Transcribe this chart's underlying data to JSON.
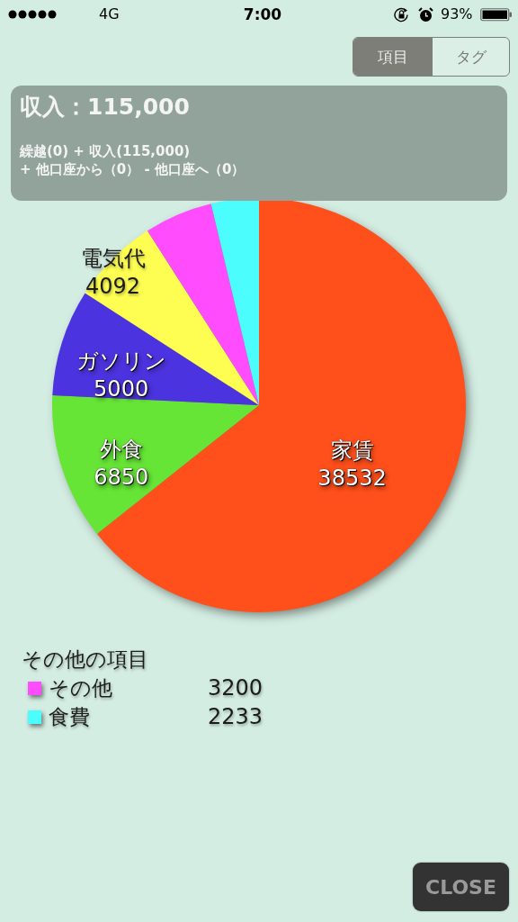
{
  "chart_data": {
    "type": "pie",
    "title": "収入：115,000",
    "subtitle": "繰越(0) + 収入(115,000)",
    "categories": [
      "家賃",
      "外食",
      "ガソリン",
      "電気代",
      "その他",
      "食費"
    ],
    "values": [
      38532,
      6850,
      5000,
      4092,
      3200,
      2233
    ],
    "colors": [
      "#ff4f1b",
      "#66e536",
      "#4c33e0",
      "#fdfd52",
      "#ff4cfc",
      "#4cfdfd"
    ],
    "data_labels": true,
    "legend": "bottom left",
    "legend_title": "その他の項目",
    "annotations": [
      "+ 他口座から（0） - 他口座へ（0）",
      "項目",
      "タグ",
      "CLOSE",
      "4G",
      "7:00",
      "93%"
    ]
  }
}
